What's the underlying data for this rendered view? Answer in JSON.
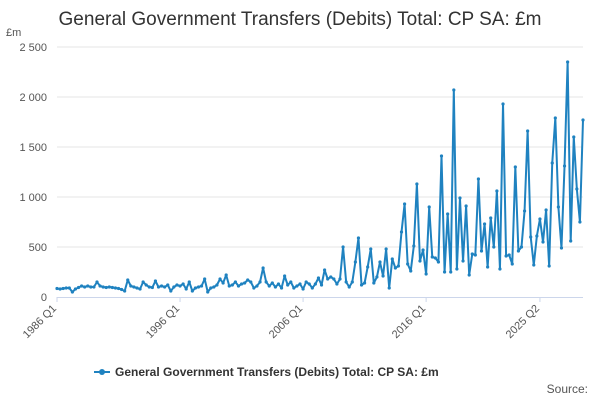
{
  "colors": {
    "series": "#1f82c0",
    "grid": "#e6e6e6",
    "axis": "#ccd6eb"
  },
  "chart_data": {
    "type": "line",
    "title": "General Government Transfers (Debits) Total: CP SA: £m",
    "ylabel": "£m",
    "ylim": [
      0,
      2500
    ],
    "yticks": [
      0,
      500,
      1000,
      1500,
      2000,
      2500
    ],
    "ytick_labels": [
      "0",
      "500",
      "1 000",
      "1 500",
      "2 000",
      "2 500"
    ],
    "xtick_labels": [
      "1986 Q1",
      "1996 Q1",
      "2006 Q1",
      "2016 Q1",
      "2025 Q2"
    ],
    "x_start": {
      "year": 1986,
      "quarter": 1
    },
    "legend": "General Government Transfers (Debits) Total: CP SA: £m",
    "source_label": "Source:",
    "series": [
      {
        "name": "General Government Transfers (Debits) Total: CP SA: £m",
        "values": [
          85,
          80,
          85,
          90,
          90,
          50,
          80,
          95,
          110,
          100,
          110,
          100,
          100,
          150,
          110,
          100,
          95,
          100,
          95,
          90,
          85,
          75,
          60,
          170,
          110,
          100,
          90,
          80,
          150,
          120,
          100,
          95,
          160,
          100,
          110,
          100,
          120,
          60,
          100,
          120,
          110,
          130,
          80,
          150,
          60,
          90,
          100,
          110,
          180,
          50,
          90,
          100,
          120,
          180,
          140,
          220,
          110,
          120,
          150,
          110,
          130,
          140,
          170,
          150,
          90,
          110,
          150,
          290,
          150,
          110,
          140,
          100,
          130,
          90,
          210,
          120,
          150,
          90,
          110,
          130,
          80,
          150,
          130,
          90,
          130,
          190,
          120,
          270,
          180,
          200,
          180,
          130,
          180,
          500,
          150,
          100,
          150,
          350,
          590,
          120,
          140,
          300,
          480,
          140,
          200,
          350,
          210,
          480,
          90,
          380,
          290,
          310,
          650,
          930,
          330,
          260,
          510,
          1130,
          360,
          470,
          230,
          900,
          400,
          390,
          350,
          1410,
          250,
          830,
          250,
          2070,
          280,
          990,
          360,
          910,
          220,
          430,
          420,
          1180,
          460,
          730,
          300,
          790,
          500,
          1060,
          280,
          1930,
          410,
          420,
          330,
          1300,
          460,
          500,
          860,
          1660,
          600,
          320,
          610,
          780,
          550,
          870,
          310,
          1340,
          1790,
          900,
          490,
          1310,
          2350,
          560,
          1600,
          1080,
          750,
          1770
        ]
      }
    ]
  }
}
